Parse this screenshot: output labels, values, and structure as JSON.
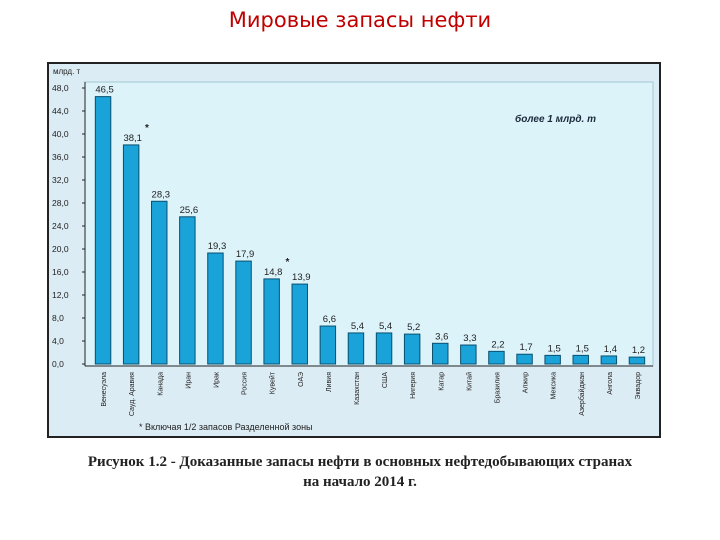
{
  "page": {
    "title": "Мировые запасы нефти",
    "caption_line1": "Рисунок 1.2 - Доказанные запасы нефти в основных нефтедобывающих странах",
    "caption_line2": "на начало 2014 г."
  },
  "chart_data": {
    "type": "bar",
    "title": "",
    "xlabel": "",
    "ylabel": "млрд. т",
    "ylim": [
      0,
      48
    ],
    "yticks": [
      "0,0",
      "4,0",
      "8,0",
      "12,0",
      "16,0",
      "20,0",
      "24,0",
      "28,0",
      "32,0",
      "36,0",
      "40,0",
      "44,0",
      "48,0"
    ],
    "grid": false,
    "inner_label": "более 1 млрд. т",
    "footnote": "* Включая 1/2 запасов Разделенной зоны",
    "categories": [
      "Венесуэла",
      "Сауд. Аравия",
      "Канада",
      "Иран",
      "Ирак",
      "Россия",
      "Кувейт",
      "ОАЭ",
      "Ливия",
      "Казахстан",
      "США",
      "Нигерия",
      "Катар",
      "Китай",
      "Бразилия",
      "Алжир",
      "Мексика",
      "Азербайджан",
      "Ангола",
      "Эквадор"
    ],
    "values": [
      46.5,
      38.1,
      28.3,
      25.6,
      19.3,
      17.9,
      14.8,
      13.9,
      6.6,
      5.4,
      5.4,
      5.2,
      3.6,
      3.3,
      2.2,
      1.7,
      1.5,
      1.5,
      1.4,
      1.2
    ],
    "value_labels": [
      "46,5",
      "38,1",
      "28,3",
      "25,6",
      "19,3",
      "17,9",
      "14,8",
      "13,9",
      "6,6",
      "5,4",
      "5,4",
      "5,2",
      "3,6",
      "3,3",
      "2,2",
      "1,7",
      "1,5",
      "1,5",
      "1,4",
      "1,2"
    ],
    "asterisks": [
      1,
      6
    ],
    "colors": {
      "bar": "#1aa3d9",
      "bar_stroke": "#0a4f6e",
      "plot_bg": "#dcf3fa",
      "axis": "#222222",
      "text": "#222222"
    }
  }
}
